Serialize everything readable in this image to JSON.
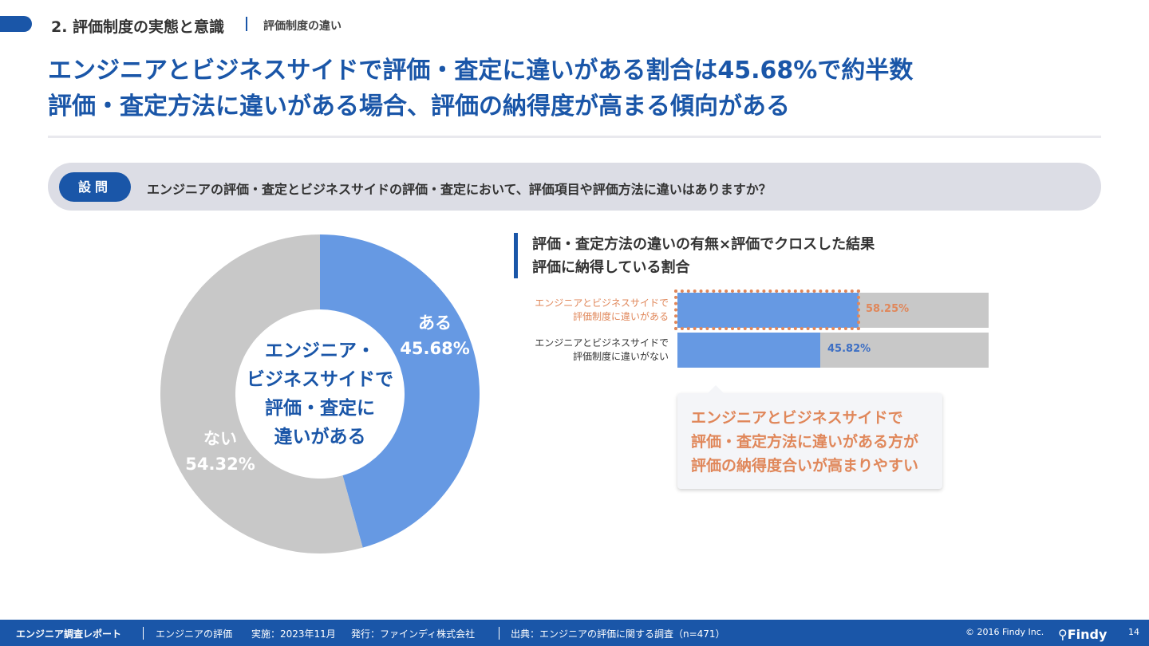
{
  "header": {
    "section_title": "2. 評価制度の実態と意識",
    "section_sub": "評価制度の違い"
  },
  "headline": {
    "line1": "エンジニアとビジネスサイドで評価・査定に違いがある割合は45.68%で約半数",
    "line2": "評価・査定方法に違いがある場合、評価の納得度が高まる傾向がある"
  },
  "question": {
    "badge": "設問",
    "text": "エンジニアの評価・査定とビジネスサイドの評価・査定において、評価項目や評価方法に違いはありますか？"
  },
  "donut": {
    "center_lines": [
      "エンジニア・",
      "ビジネスサイドで",
      "評価・査定に",
      "違いがある"
    ],
    "slice_aru_label": "ある",
    "slice_aru_value": "45.68%",
    "slice_nai_label": "ない",
    "slice_nai_value": "54.32%"
  },
  "bars": {
    "title_line1": "評価・査定方法の違いの有無×評価でクロスした結果",
    "title_line2": "評価に納得している割合",
    "row1_label_line1": "エンジニアとビジネスサイドで",
    "row1_label_line2": "評価制度に違いがある",
    "row1_value": "58.25%",
    "row2_label_line1": "エンジニアとビジネスサイドで",
    "row2_label_line2": "評価制度に違いがない",
    "row2_value": "45.82%"
  },
  "callout": {
    "line1": "エンジニアとビジネスサイドで",
    "line2": "評価・査定方法に違いがある方が",
    "line3": "評価の納得度合いが高まりやすい"
  },
  "footer": {
    "report": "エンジニア調査レポート",
    "topic": "エンジニアの評価",
    "date": "実施：2023年11月",
    "publisher": "発行：ファインディ株式会社",
    "source": "出典：エンジニアの評価に関する調査（n=471）",
    "copyright": "© 2016 Findy Inc.",
    "logo": "Findy",
    "page": "14"
  },
  "colors": {
    "brand_blue": "#1a56a8",
    "slice_blue": "#6699e3",
    "slice_gray": "#c8c8c8",
    "accent_orange": "#e0875a"
  },
  "chart_data": [
    {
      "type": "pie",
      "categories": [
        "ある",
        "ない"
      ],
      "values": [
        45.68,
        54.32
      ],
      "unit": "%"
    },
    {
      "type": "bar",
      "orientation": "horizontal",
      "title": "評価・査定方法の違いの有無×評価でクロスした結果 評価に納得している割合",
      "categories": [
        "エンジニアとビジネスサイドで評価制度に違いがある",
        "エンジニアとビジネスサイドで評価制度に違いがない"
      ],
      "values": [
        58.25,
        45.82
      ],
      "xlim": [
        0,
        100
      ],
      "unit": "%"
    }
  ]
}
